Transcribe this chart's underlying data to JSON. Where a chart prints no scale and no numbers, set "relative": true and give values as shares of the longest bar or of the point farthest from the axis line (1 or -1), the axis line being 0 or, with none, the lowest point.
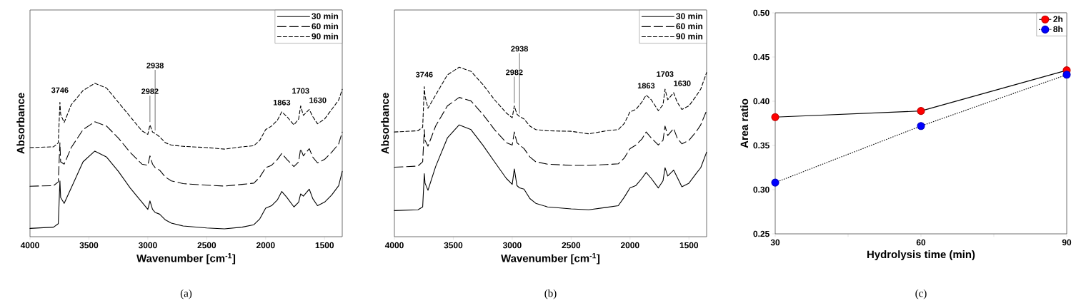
{
  "chart_data": [
    {
      "type": "line",
      "relative": true,
      "xlabel": "Wavenumber [cm$^{-1}$]",
      "ylabel": "Absorbance",
      "xlim": [
        4000,
        1350
      ],
      "xticks": [
        4000,
        3500,
        3000,
        2500,
        2000,
        1500
      ],
      "legend": "top right",
      "x": [
        4000,
        3800,
        3760,
        3746,
        3740,
        3710,
        3650,
        3550,
        3450,
        3350,
        3250,
        3150,
        3050,
        3000,
        2982,
        2960,
        2938,
        2900,
        2850,
        2800,
        2700,
        2500,
        2350,
        2200,
        2100,
        2050,
        2000,
        1950,
        1900,
        1863,
        1820,
        1760,
        1720,
        1703,
        1680,
        1630,
        1600,
        1560,
        1500,
        1440,
        1380,
        1350
      ],
      "series": [
        {
          "name": "30 min",
          "color": "#000000",
          "line_style": "solid",
          "values": [
            0.054,
            0.062,
            0.085,
            0.364,
            0.256,
            0.217,
            0.318,
            0.488,
            0.558,
            0.519,
            0.426,
            0.318,
            0.225,
            0.178,
            0.233,
            0.178,
            0.158,
            0.147,
            0.109,
            0.088,
            0.07,
            0.057,
            0.051,
            0.062,
            0.078,
            0.116,
            0.186,
            0.202,
            0.24,
            0.295,
            0.256,
            0.194,
            0.225,
            0.279,
            0.264,
            0.31,
            0.248,
            0.202,
            0.225,
            0.271,
            0.333,
            0.426
          ]
        },
        {
          "name": "60 min",
          "color": "#000000",
          "line_style": "dashed",
          "values": [
            0.329,
            0.333,
            0.357,
            0.612,
            0.488,
            0.473,
            0.581,
            0.698,
            0.749,
            0.721,
            0.643,
            0.55,
            0.473,
            0.465,
            0.527,
            0.473,
            0.45,
            0.434,
            0.388,
            0.364,
            0.346,
            0.336,
            0.33,
            0.341,
            0.349,
            0.388,
            0.45,
            0.465,
            0.504,
            0.543,
            0.504,
            0.457,
            0.488,
            0.574,
            0.527,
            0.574,
            0.519,
            0.481,
            0.504,
            0.55,
            0.605,
            0.682
          ]
        },
        {
          "name": "90 min",
          "color": "#000000",
          "line_style": "dashed",
          "values": [
            0.581,
            0.586,
            0.612,
            0.876,
            0.798,
            0.744,
            0.86,
            0.953,
            1.0,
            0.969,
            0.876,
            0.783,
            0.69,
            0.667,
            0.729,
            0.682,
            0.674,
            0.651,
            0.612,
            0.597,
            0.589,
            0.581,
            0.571,
            0.586,
            0.593,
            0.628,
            0.698,
            0.721,
            0.76,
            0.814,
            0.783,
            0.729,
            0.767,
            0.853,
            0.791,
            0.829,
            0.783,
            0.736,
            0.767,
            0.829,
            0.891,
            0.961
          ]
        }
      ],
      "annotations": [
        {
          "text": "3746",
          "x": 3746,
          "y": 0.876
        },
        {
          "text": "2982",
          "x": 2982,
          "y": 0.729
        },
        {
          "text": "2938",
          "x": 2938,
          "y": 0.674
        },
        {
          "text": "1863",
          "x": 1863,
          "y": 0.814
        },
        {
          "text": "1703",
          "x": 1703,
          "y": 0.853
        },
        {
          "text": "1630",
          "x": 1630,
          "y": 0.829
        },
        "(a)"
      ]
    },
    {
      "type": "line",
      "relative": true,
      "xlabel": "Wavenumber [cm$^{-1}$]",
      "ylabel": "Absorbance",
      "xlim": [
        4000,
        1350
      ],
      "xticks": [
        4000,
        3500,
        3000,
        2500,
        2000,
        1500
      ],
      "legend": "top right",
      "x": [
        4000,
        3800,
        3760,
        3746,
        3740,
        3715,
        3650,
        3550,
        3450,
        3350,
        3250,
        3150,
        3050,
        3000,
        2982,
        2960,
        2938,
        2900,
        2850,
        2800,
        2700,
        2500,
        2350,
        2200,
        2100,
        2050,
        2000,
        1950,
        1900,
        1863,
        1820,
        1760,
        1720,
        1703,
        1680,
        1630,
        1600,
        1560,
        1500,
        1440,
        1400,
        1350
      ],
      "series": [
        {
          "name": "30 min",
          "color": "#000000",
          "line_style": "solid",
          "values": [
            0.154,
            0.159,
            0.176,
            0.372,
            0.316,
            0.274,
            0.414,
            0.583,
            0.66,
            0.632,
            0.541,
            0.442,
            0.344,
            0.309,
            0.4,
            0.302,
            0.288,
            0.281,
            0.225,
            0.197,
            0.176,
            0.164,
            0.159,
            0.173,
            0.183,
            0.232,
            0.288,
            0.302,
            0.344,
            0.379,
            0.344,
            0.288,
            0.33,
            0.407,
            0.358,
            0.393,
            0.351,
            0.295,
            0.316,
            0.372,
            0.407,
            0.499
          ]
        },
        {
          "name": "60 min",
          "color": "#000000",
          "line_style": "dashed",
          "values": [
            0.41,
            0.417,
            0.442,
            0.632,
            0.569,
            0.534,
            0.653,
            0.772,
            0.822,
            0.801,
            0.723,
            0.632,
            0.555,
            0.541,
            0.618,
            0.555,
            0.541,
            0.52,
            0.471,
            0.442,
            0.428,
            0.421,
            0.421,
            0.426,
            0.43,
            0.463,
            0.52,
            0.541,
            0.576,
            0.618,
            0.583,
            0.541,
            0.569,
            0.653,
            0.597,
            0.639,
            0.583,
            0.548,
            0.569,
            0.618,
            0.66,
            0.744
          ]
        },
        {
          "name": "90 min",
          "color": "#000000",
          "line_style": "dashed",
          "values": [
            0.618,
            0.625,
            0.646,
            0.885,
            0.829,
            0.758,
            0.836,
            0.955,
            1.0,
            0.976,
            0.899,
            0.808,
            0.73,
            0.702,
            0.772,
            0.723,
            0.709,
            0.695,
            0.653,
            0.632,
            0.625,
            0.622,
            0.607,
            0.625,
            0.632,
            0.667,
            0.737,
            0.751,
            0.794,
            0.836,
            0.808,
            0.744,
            0.779,
            0.871,
            0.808,
            0.85,
            0.794,
            0.751,
            0.772,
            0.829,
            0.871,
            0.969
          ]
        }
      ],
      "annotations": [
        {
          "text": "3746",
          "x": 3746,
          "y": 0.885
        },
        {
          "text": "2982",
          "x": 2982,
          "y": 0.772
        },
        {
          "text": "2938",
          "x": 2938,
          "y": 0.709
        },
        {
          "text": "1863",
          "x": 1863,
          "y": 0.836
        },
        {
          "text": "1703",
          "x": 1703,
          "y": 0.871
        },
        {
          "text": "1630",
          "x": 1630,
          "y": 0.85
        },
        "(b)"
      ]
    },
    {
      "type": "line",
      "xlabel": "Hydrolysis time (min)",
      "ylabel": "Area ratio",
      "xlim": [
        30,
        90
      ],
      "ylim": [
        0.25,
        0.5
      ],
      "marker": "circle",
      "legend": "top right",
      "xticks": [
        30,
        {
          "value": 45,
          "label": null
        },
        60,
        {
          "value": 75,
          "label": null
        },
        90
      ],
      "yticks": [
        {
          "value": 0.25,
          "label": "0.25"
        },
        {
          "value": 0.3,
          "label": "0.30"
        },
        {
          "value": 0.35,
          "label": "0.35"
        },
        {
          "value": 0.4,
          "label": "0.40"
        },
        {
          "value": 0.45,
          "label": "0.45"
        },
        {
          "value": 0.5,
          "label": "0.50"
        }
      ],
      "x": [
        30,
        60,
        90
      ],
      "series": [
        {
          "name": "2h",
          "color": "#ff0000",
          "line_style": "solid",
          "values": [
            0.382,
            0.389,
            0.435
          ]
        },
        {
          "name": "8h",
          "color": "#0000ff",
          "line_style": "dotted",
          "values": [
            0.308,
            0.372,
            0.43
          ]
        }
      ],
      "annotations": [
        "(c)"
      ]
    }
  ]
}
